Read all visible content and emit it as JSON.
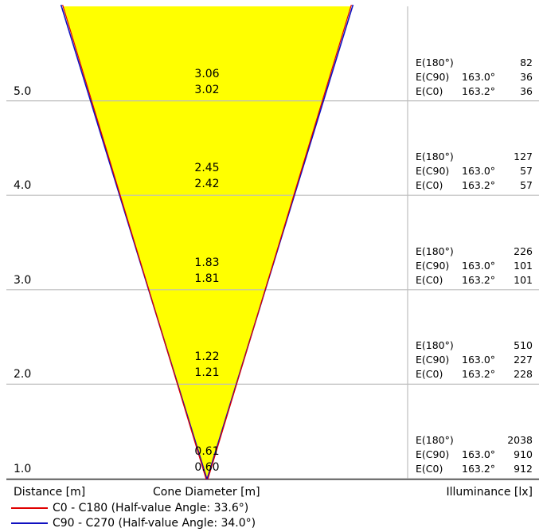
{
  "chart_data": {
    "type": "cone-diagram",
    "x_axis_label": "Distance [m]",
    "center_label": "Cone Diameter [m]",
    "right_label": "Illuminance [lx]",
    "colors": {
      "fill": "#ffff00",
      "c0_line": "#e00000",
      "c90_line": "#1010c0",
      "grid": "#bdbdbd"
    },
    "rows": [
      {
        "distance": "5.0",
        "diam_c90": "3.06",
        "diam_c0": "3.02",
        "e180_label": "E(180°)",
        "e180": "82",
        "ec90_label": "E(C90)",
        "ec90_angle": "163.0°",
        "ec90": "36",
        "ec0_label": "E(C0)",
        "ec0_angle": "163.2°",
        "ec0": "36"
      },
      {
        "distance": "4.0",
        "diam_c90": "2.45",
        "diam_c0": "2.42",
        "e180_label": "E(180°)",
        "e180": "127",
        "ec90_label": "E(C90)",
        "ec90_angle": "163.0°",
        "ec90": "57",
        "ec0_label": "E(C0)",
        "ec0_angle": "163.2°",
        "ec0": "57"
      },
      {
        "distance": "3.0",
        "diam_c90": "1.83",
        "diam_c0": "1.81",
        "e180_label": "E(180°)",
        "e180": "226",
        "ec90_label": "E(C90)",
        "ec90_angle": "163.0°",
        "ec90": "101",
        "ec0_label": "E(C0)",
        "ec0_angle": "163.2°",
        "ec0": "101"
      },
      {
        "distance": "2.0",
        "diam_c90": "1.22",
        "diam_c0": "1.21",
        "e180_label": "E(180°)",
        "e180": "510",
        "ec90_label": "E(C90)",
        "ec90_angle": "163.0°",
        "ec90": "227",
        "ec0_label": "E(C0)",
        "ec0_angle": "163.2°",
        "ec0": "228"
      },
      {
        "distance": "1.0",
        "diam_c90": "0.61",
        "diam_c0": "0.60",
        "e180_label": "E(180°)",
        "e180": "2038",
        "ec90_label": "E(C90)",
        "ec90_angle": "163.0°",
        "ec90": "910",
        "ec0_label": "E(C0)",
        "ec0_angle": "163.2°",
        "ec0": "912"
      }
    ],
    "legend": [
      {
        "name": "C0 - C180 (Half-value Angle: 33.6°)",
        "color": "#e00000"
      },
      {
        "name": "C90 - C270 (Half-value Angle: 34.0°)",
        "color": "#1010c0"
      }
    ]
  }
}
